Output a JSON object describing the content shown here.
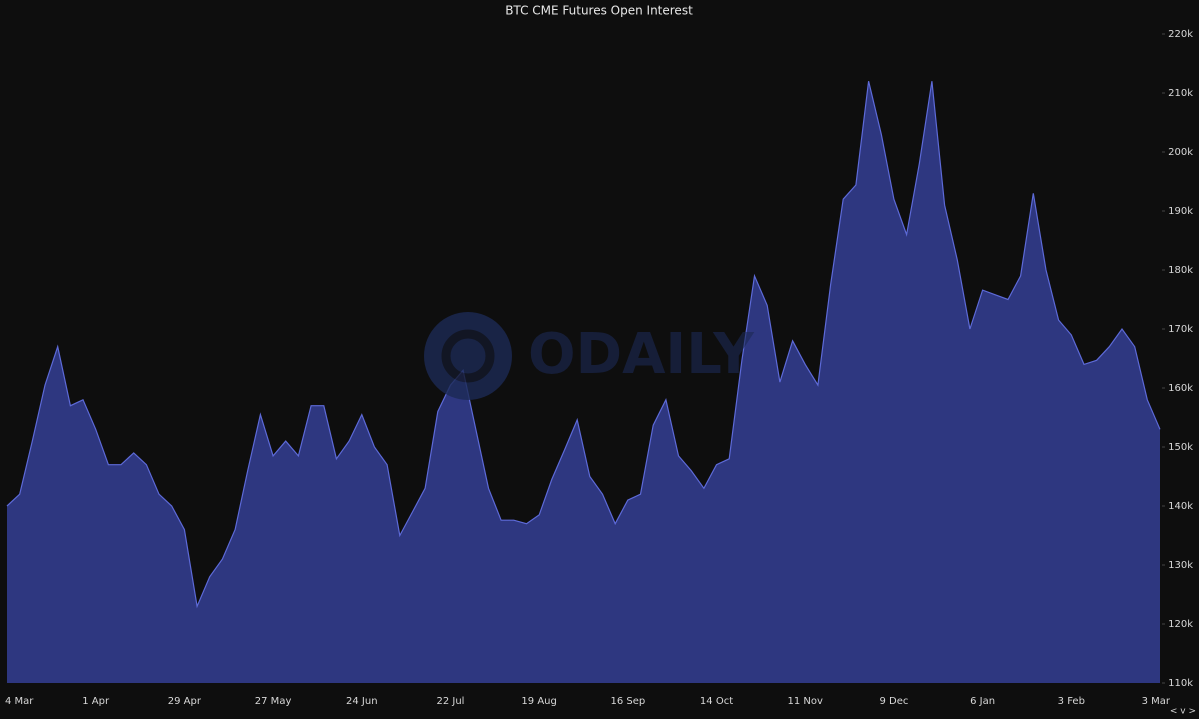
{
  "chart_data": {
    "type": "area",
    "title": "BTC CME Futures Open Interest",
    "watermark": "ODAILY",
    "controls": "< v >",
    "color": "#2e3780",
    "line_color": "#5d6ad8",
    "categories": [
      "4 Mar",
      null,
      null,
      null,
      null,
      null,
      null,
      "1 Apr",
      null,
      null,
      null,
      null,
      null,
      null,
      "29 Apr",
      null,
      null,
      null,
      null,
      null,
      null,
      "27 May",
      null,
      null,
      null,
      null,
      null,
      null,
      "24 Jun",
      null,
      null,
      null,
      null,
      null,
      null,
      "22 Jul",
      null,
      null,
      null,
      null,
      null,
      null,
      "19 Aug",
      null,
      null,
      null,
      null,
      null,
      null,
      "16 Sep",
      null,
      null,
      null,
      null,
      null,
      null,
      "14 Oct",
      null,
      null,
      null,
      null,
      null,
      null,
      "11 Nov",
      null,
      null,
      null,
      null,
      null,
      null,
      "9 Dec",
      null,
      null,
      null,
      null,
      null,
      null,
      "6 Jan",
      null,
      null,
      null,
      null,
      null,
      null,
      "3 Feb",
      null,
      null,
      null,
      null,
      null,
      null,
      "3 Mar"
    ],
    "values": [
      140000,
      142000,
      151000,
      160500,
      167000,
      157000,
      158000,
      153000,
      147000,
      147000,
      149000,
      147000,
      142000,
      140000,
      136000,
      123000,
      128000,
      131000,
      136000,
      146000,
      155500,
      148500,
      151000,
      148500,
      157000,
      157000,
      148000,
      151000,
      155500,
      150000,
      147000,
      135000,
      139000,
      143000,
      156000,
      160500,
      163000,
      153000,
      143000,
      137600,
      137600,
      137000,
      138500,
      144500,
      149500,
      154600,
      145000,
      142000,
      137000,
      141000,
      142000,
      153700,
      158000,
      148500,
      146000,
      143000,
      147000,
      148000,
      164700,
      179000,
      174000,
      161000,
      168000,
      164000,
      160500,
      177500,
      192000,
      194400,
      212000,
      203000,
      192000,
      186000,
      198000,
      212000,
      191000,
      181700,
      170000,
      176600,
      175800,
      175000,
      179000,
      193000,
      180000,
      171500,
      169000,
      164000,
      164700,
      167000,
      170000,
      167000,
      158000,
      153000
    ],
    "ylim": [
      110000,
      220000
    ],
    "yticks": [
      {
        "value": 110000,
        "label": "110k"
      },
      {
        "value": 120000,
        "label": "120k"
      },
      {
        "value": 130000,
        "label": "130k"
      },
      {
        "value": 140000,
        "label": "140k"
      },
      {
        "value": 150000,
        "label": "150k"
      },
      {
        "value": 160000,
        "label": "160k"
      },
      {
        "value": 170000,
        "label": "170k"
      },
      {
        "value": 180000,
        "label": "180k"
      },
      {
        "value": 190000,
        "label": "190k"
      },
      {
        "value": 200000,
        "label": "200k"
      },
      {
        "value": 210000,
        "label": "210k"
      },
      {
        "value": 220000,
        "label": "220k"
      }
    ],
    "grid": false
  }
}
